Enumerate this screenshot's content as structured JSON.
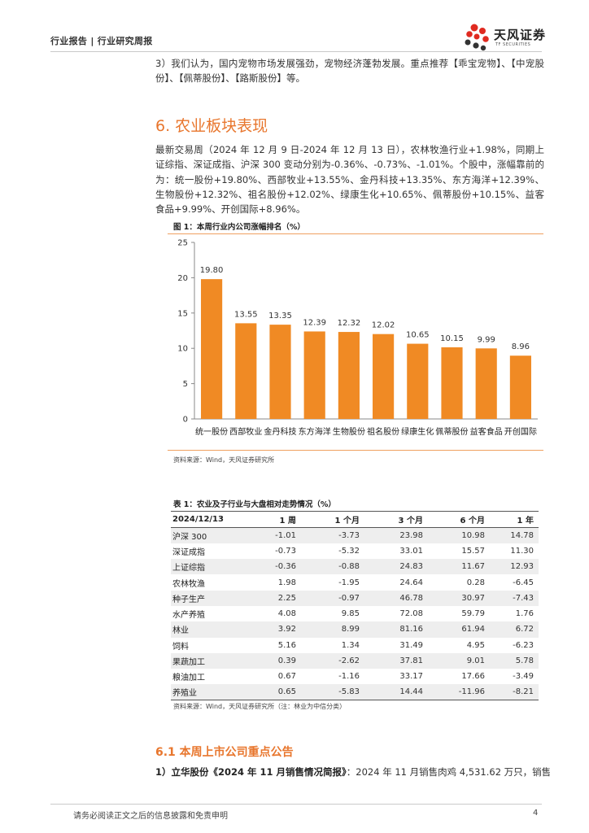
{
  "header": {
    "label": "行业报告 | 行业研究周报"
  },
  "logo": {
    "name_cn": "天风证券",
    "name_en": "TF SECURITIES"
  },
  "intro": {
    "text": "3）我们认为，国内宠物市场发展强劲，宠物经济蓬勃发展。重点推荐【乖宝宠物】、【中宠股份】、【佩蒂股份】、【路斯股份】等。"
  },
  "section": {
    "title": "6. 农业板块表现",
    "paragraph": "最新交易周（2024 年 12 月 9 日-2024 年 12 月 13 日），农林牧渔行业+1.98%，同期上证综指、深证成指、沪深 300 变动分别为-0.36%、-0.73%、-1.01%。个股中，涨幅靠前的为：统一股份+19.80%、西部牧业+13.55%、金丹科技+13.35%、东方海洋+12.39%、生物股份+12.32%、祖名股份+12.02%、绿康生化+10.65%、佩蒂股份+10.15%、益客食品+9.99%、开创国际+8.96%。"
  },
  "figure": {
    "title": "图 1：本周行业内公司涨幅排名（%）",
    "source": "资料来源：Wind，天风证券研究所"
  },
  "chart_data": {
    "type": "bar",
    "title": "本周行业内公司涨幅排名（%）",
    "categories": [
      "统一股份",
      "西部牧业",
      "金丹科技",
      "东方海洋",
      "生物股份",
      "祖名股份",
      "绿康生化",
      "佩蒂股份",
      "益客食品",
      "开创国际"
    ],
    "values": [
      19.8,
      13.55,
      13.35,
      12.39,
      12.32,
      12.02,
      10.65,
      10.15,
      9.99,
      8.96
    ],
    "labels": [
      "19.80",
      "13.55",
      "13.35",
      "12.39",
      "12.32",
      "12.02",
      "10.65",
      "10.15",
      "9.99",
      "8.96"
    ],
    "yticks": [
      0,
      5,
      10,
      15,
      20,
      25
    ],
    "ylim": [
      0,
      25
    ],
    "xlabel": "",
    "ylabel": "",
    "bar_color": "#f08a24",
    "grid": false
  },
  "table": {
    "title": "表 1：农业及子行业与大盘相对走势情况（%）",
    "headers": [
      "2024/12/13",
      "1 周",
      "1 个月",
      "3 个月",
      "6 个月",
      "1 年"
    ],
    "rows": [
      [
        "沪深 300",
        "-1.01",
        "-3.73",
        "23.98",
        "10.98",
        "14.78"
      ],
      [
        "深证成指",
        "-0.73",
        "-5.32",
        "33.01",
        "15.57",
        "11.30"
      ],
      [
        "上证综指",
        "-0.36",
        "-0.88",
        "24.83",
        "11.67",
        "12.93"
      ],
      [
        "农林牧渔",
        "1.98",
        "-1.95",
        "24.64",
        "0.28",
        "-6.45"
      ],
      [
        "种子生产",
        "2.25",
        "-0.97",
        "46.78",
        "30.97",
        "-7.43"
      ],
      [
        "水产养殖",
        "4.08",
        "9.85",
        "72.08",
        "59.79",
        "1.76"
      ],
      [
        "林业",
        "3.92",
        "8.99",
        "81.16",
        "61.94",
        "6.72"
      ],
      [
        "饲料",
        "5.16",
        "1.34",
        "31.49",
        "4.95",
        "-6.23"
      ],
      [
        "果蔬加工",
        "0.39",
        "-2.62",
        "37.81",
        "9.01",
        "5.78"
      ],
      [
        "粮油加工",
        "0.67",
        "-1.16",
        "33.17",
        "17.66",
        "-3.49"
      ],
      [
        "养殖业",
        "0.65",
        "-5.83",
        "14.44",
        "-11.96",
        "-8.21"
      ]
    ],
    "source": "资料来源：Wind，天风证券研究所（注：林业为中信分类）"
  },
  "subsection": {
    "title": "6.1 本周上市公司重点公告",
    "item_lead": "1）立华股份《2024 年 11 月销售情况简报》",
    "item_text": "：2024 年 11 月销售肉鸡 4,531.62 万只，销售"
  },
  "footer": {
    "disclaimer": "请务必阅读正文之后的信息披露和免责申明",
    "page": "4"
  }
}
